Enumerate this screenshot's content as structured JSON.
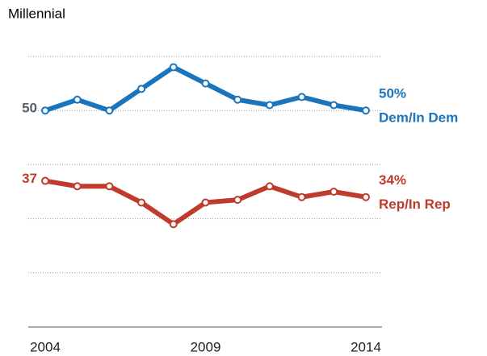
{
  "chart_data": {
    "type": "line",
    "title": "Millennial",
    "x": [
      2004,
      2005,
      2006,
      2007,
      2008,
      2009,
      2010,
      2011,
      2012,
      2013,
      2014
    ],
    "xlim": [
      2004,
      2014
    ],
    "xticks": [
      2004,
      2009,
      2014
    ],
    "ylim": [
      10,
      60
    ],
    "yticks": [
      20,
      30,
      40,
      50,
      60
    ],
    "grid": true,
    "series": [
      {
        "name": "Dem/In Dem",
        "color": "#1b75bc",
        "start_label_color": "#56616e",
        "values": [
          50,
          52,
          50,
          54,
          58,
          55,
          52,
          51,
          52.5,
          51,
          50
        ],
        "value_labels": [
          "50",
          null,
          null,
          null,
          null,
          null,
          null,
          null,
          null,
          null,
          "50%"
        ]
      },
      {
        "name": "Rep/In Rep",
        "color": "#bf3b2c",
        "start_label_color": "#bf3b2c",
        "values": [
          37,
          36,
          36,
          33,
          29,
          33,
          33.5,
          36,
          34,
          35,
          34
        ],
        "value_labels": [
          "37",
          null,
          null,
          null,
          null,
          null,
          null,
          null,
          null,
          null,
          "34%"
        ]
      }
    ]
  }
}
